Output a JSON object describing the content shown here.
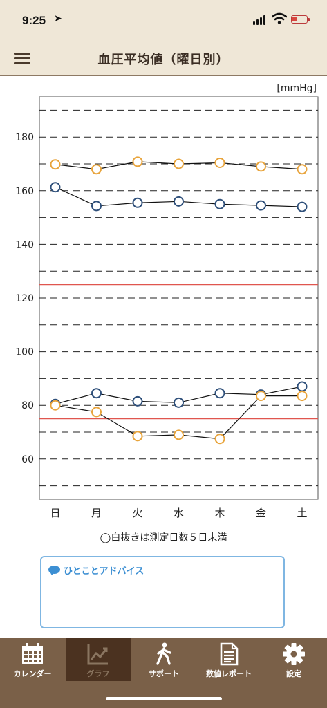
{
  "status": {
    "time": "9:25",
    "location_glyph": "➤"
  },
  "nav": {
    "title": "血圧平均値（曜日別）"
  },
  "chart_data": {
    "type": "line",
    "unit_label": "[mmHg]",
    "categories": [
      "日",
      "月",
      "火",
      "水",
      "木",
      "金",
      "土"
    ],
    "ylim": [
      45,
      195
    ],
    "yticks": [
      60,
      80,
      100,
      120,
      140,
      160,
      180
    ],
    "dashed_gridlines": [
      50,
      60,
      70,
      80,
      90,
      100,
      110,
      120,
      130,
      140,
      150,
      160,
      170,
      180,
      190
    ],
    "reference_lines": [
      {
        "value": 125,
        "color": "#e0564f"
      },
      {
        "value": 75,
        "color": "#e0564f"
      }
    ],
    "series": [
      {
        "values": [
          169.8,
          168.0,
          170.8,
          170.0,
          170.4,
          169.0,
          168.0
        ],
        "color": "#e8a43c"
      },
      {
        "values": [
          161.3,
          154.3,
          155.5,
          156.0,
          155.0,
          154.5,
          154.0
        ],
        "color": "#2e4f7a"
      },
      {
        "values": [
          80.5,
          84.5,
          81.5,
          81.0,
          84.5,
          84.0,
          87.0
        ],
        "color": "#2e4f7a"
      },
      {
        "values": [
          80.0,
          77.5,
          68.5,
          69.0,
          67.5,
          83.5,
          83.5
        ],
        "color": "#e8a43c"
      }
    ]
  },
  "note": "◯白抜きは測定日数５日未満",
  "advice": {
    "title": "ひとことアドバイス"
  },
  "tabs": [
    {
      "label": "カレンダー",
      "icon": "calendar-icon"
    },
    {
      "label": "グラフ",
      "icon": "graph-icon"
    },
    {
      "label": "サポート",
      "icon": "walking-person-icon"
    },
    {
      "label": "数値レポート",
      "icon": "document-icon"
    },
    {
      "label": "設定",
      "icon": "gear-icon"
    }
  ]
}
